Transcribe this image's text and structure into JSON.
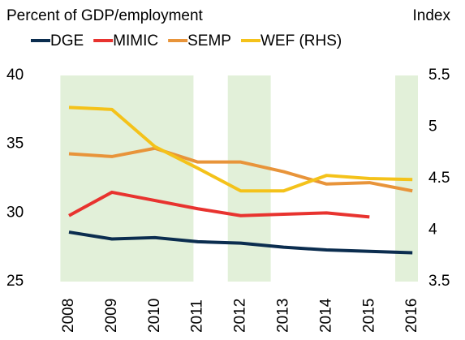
{
  "chart_data": {
    "type": "line",
    "y_label": "Percent of GDP/employment",
    "y2_label": "Index",
    "categories": [
      "2008",
      "2009",
      "2010",
      "2011",
      "2012",
      "2013",
      "2014",
      "2015",
      "2016"
    ],
    "series": [
      {
        "name": "DGE",
        "color": "#0b2d4f",
        "values": [
          28.6,
          28.1,
          28.2,
          27.9,
          27.8,
          27.5,
          27.3,
          27.2,
          27.1
        ]
      },
      {
        "name": "MIMIC",
        "color": "#e8332f",
        "values": [
          29.8,
          31.5,
          30.9,
          30.3,
          29.8,
          29.9,
          30.0,
          29.7,
          null
        ]
      },
      {
        "name": "SEMP",
        "color": "#e8943a",
        "values": [
          34.3,
          34.1,
          34.7,
          33.7,
          33.7,
          33.0,
          32.1,
          32.2,
          31.6
        ]
      },
      {
        "name": "WEF (RHS)",
        "color": "#f4c21a",
        "axis": "y2",
        "values": [
          5.19,
          5.17,
          4.81,
          4.6,
          4.38,
          4.38,
          4.53,
          4.5,
          4.49
        ]
      }
    ],
    "ylim": [
      25,
      40
    ],
    "yticks": [
      25,
      30,
      35,
      40
    ],
    "y2lim": [
      3.5,
      5.5
    ],
    "y2ticks": [
      3.5,
      4,
      4.5,
      5,
      5.5
    ],
    "shaded": [
      [
        -0.2,
        2.9
      ],
      [
        3.7,
        4.7
      ],
      [
        7.6,
        8.15
      ]
    ],
    "shade_color": "#e2f0d9"
  }
}
